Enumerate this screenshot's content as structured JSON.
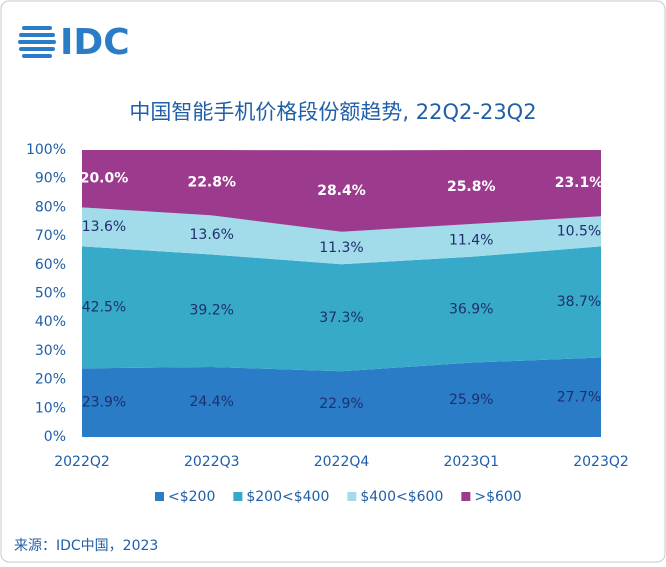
{
  "logo": "IDC",
  "source": "来源：IDC中国，2023",
  "chart_data": {
    "type": "stacked_area",
    "title": "中国智能手机价格段份额趋势, 22Q2-23Q2",
    "categories": [
      "2022Q2",
      "2022Q3",
      "2022Q4",
      "2023Q1",
      "2023Q2"
    ],
    "ylim": [
      0,
      100
    ],
    "yticks": [
      {
        "value": 0,
        "label": "0%"
      },
      {
        "value": 10,
        "label": "10%"
      },
      {
        "value": 20,
        "label": "20%"
      },
      {
        "value": 30,
        "label": "30%"
      },
      {
        "value": 40,
        "label": "40%"
      },
      {
        "value": 50,
        "label": "50%"
      },
      {
        "value": 60,
        "label": "60%"
      },
      {
        "value": 70,
        "label": "70%"
      },
      {
        "value": 80,
        "label": "80%"
      },
      {
        "value": 90,
        "label": "90%"
      },
      {
        "value": 100,
        "label": "100%"
      }
    ],
    "legend": "bottom",
    "series": [
      {
        "name": "<$200",
        "color": "#2a7cc7",
        "label_color": "#1f2f6e",
        "values": [
          23.9,
          24.4,
          22.9,
          25.9,
          27.7
        ],
        "value_labels": [
          "23.9%",
          "24.4%",
          "22.9%",
          "25.9%",
          "27.7%"
        ]
      },
      {
        "name": "$200<$400",
        "color": "#36aac8",
        "label_color": "#1f2f6e",
        "values": [
          42.5,
          39.2,
          37.3,
          36.9,
          38.7
        ],
        "value_labels": [
          "42.5%",
          "39.2%",
          "37.3%",
          "36.9%",
          "38.7%"
        ]
      },
      {
        "name": "$400<$600",
        "color": "#a2dcea",
        "label_color": "#1f2f6e",
        "values": [
          13.6,
          13.6,
          11.3,
          11.4,
          10.5
        ],
        "value_labels": [
          "13.6%",
          "13.6%",
          "11.3%",
          "11.4%",
          "10.5%"
        ]
      },
      {
        "name": ">$600",
        "color": "#9c3b8d",
        "label_color": "#ffffff",
        "bold": true,
        "values": [
          20.0,
          22.8,
          28.4,
          25.8,
          23.1
        ],
        "value_labels": [
          "20.0%",
          "22.8%",
          "28.4%",
          "25.8%",
          "23.1%"
        ]
      }
    ]
  }
}
